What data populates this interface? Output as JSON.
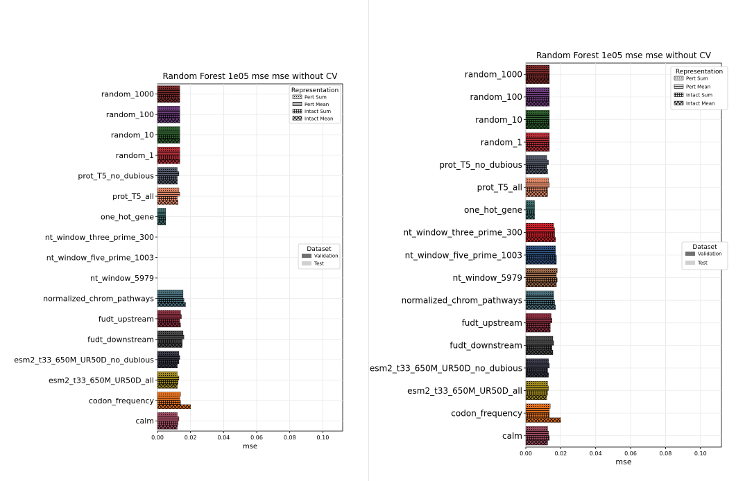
{
  "legend_representation": {
    "title": "Representation",
    "items": [
      "Pert Sum",
      "Pert Mean",
      "Intact Sum",
      "Intact Mean"
    ]
  },
  "legend_dataset": {
    "title": "Dataset",
    "items": [
      "Validation",
      "Test"
    ]
  },
  "colors": {
    "random_1000": "#7a2a2a",
    "random_100": "#6b3d7a",
    "random_10": "#2f5e2f",
    "random_1": "#b5303a",
    "prot_T5_no_dubious": "#555b6b",
    "prot_T5_all": "#e08a6a",
    "one_hot_gene": "#3e6e6e",
    "nt_window_three_prime_300": "#c8202a",
    "nt_window_five_prime_1003": "#2e4e7a",
    "nt_window_5979": "#9a6a4a",
    "normalized_chrom_pathways": "#4a6e7a",
    "fudt_upstream": "#8a3040",
    "fudt_downstream": "#4a4a4a",
    "esm2_t33_650M_UR50D_no_dubious": "#3a3a4a",
    "esm2_t33_650M_UR50D_all": "#a08a20",
    "codon_frequency": "#e07020",
    "calm": "#9a4a5e",
    "validation": "#707070",
    "test": "#d0d0d0"
  },
  "chart_data": [
    {
      "type": "bar",
      "orientation": "horizontal",
      "title": "Random Forest 1e05 mse mse without CV",
      "xlabel": "mse",
      "ylabel": "",
      "xlim": [
        0,
        0.112
      ],
      "xticks": [
        "0.00",
        "0.02",
        "0.04",
        "0.06",
        "0.08",
        "0.10"
      ],
      "grid": true,
      "categories": [
        "random_1000",
        "random_100",
        "random_10",
        "random_1",
        "prot_T5_no_dubious",
        "prot_T5_all",
        "one_hot_gene",
        "nt_window_three_prime_300",
        "nt_window_five_prime_1003",
        "nt_window_5979",
        "normalized_chrom_pathways",
        "fudt_upstream",
        "fudt_downstream",
        "esm2_t33_650M_UR50D_no_dubious",
        "esm2_t33_650M_UR50D_all",
        "codon_frequency",
        "calm"
      ],
      "series": [
        {
          "name": "Pert Sum",
          "values": [
            0.0135,
            0.0135,
            0.0135,
            0.0135,
            0.012,
            0.013,
            0.005,
            null,
            null,
            null,
            0.0155,
            0.014,
            0.0155,
            0.013,
            0.012,
            0.014,
            0.012
          ]
        },
        {
          "name": "Pert Mean",
          "values": [
            0.0135,
            0.0135,
            0.0135,
            0.0135,
            0.013,
            0.0135,
            0.005,
            null,
            null,
            null,
            0.0155,
            0.0145,
            0.016,
            0.0135,
            0.013,
            0.0135,
            0.013
          ]
        },
        {
          "name": "Intact Sum",
          "values": [
            0.0135,
            0.0135,
            0.0135,
            0.0135,
            0.012,
            0.012,
            0.005,
            null,
            null,
            null,
            0.016,
            0.0135,
            0.015,
            0.013,
            0.0125,
            0.014,
            0.0125
          ]
        },
        {
          "name": "Intact Mean",
          "values": [
            0.0135,
            0.0135,
            0.0135,
            0.0135,
            0.012,
            0.0125,
            0.005,
            null,
            null,
            null,
            0.017,
            0.014,
            0.015,
            0.012,
            0.012,
            0.02,
            0.012
          ]
        }
      ],
      "legend_placement": [
        "top-right",
        "center-right"
      ]
    },
    {
      "type": "bar",
      "orientation": "horizontal",
      "title": "Random Forest 1e05 mse mse without CV",
      "xlabel": "mse",
      "ylabel": "",
      "xlim": [
        0,
        0.112
      ],
      "xticks": [
        "0.00",
        "0.02",
        "0.04",
        "0.06",
        "0.08",
        "0.10"
      ],
      "grid": true,
      "categories": [
        "random_1000",
        "random_100",
        "random_10",
        "random_1",
        "prot_T5_no_dubious",
        "prot_T5_all",
        "one_hot_gene",
        "nt_window_three_prime_300",
        "nt_window_five_prime_1003",
        "nt_window_5979",
        "normalized_chrom_pathways",
        "fudt_upstream",
        "fudt_downstream",
        "esm2_t33_650M_UR50D_no_dubious",
        "esm2_t33_650M_UR50D_all",
        "codon_frequency",
        "calm"
      ],
      "series": [
        {
          "name": "Pert Sum",
          "values": [
            0.0135,
            0.0135,
            0.0135,
            0.0135,
            0.012,
            0.013,
            0.005,
            0.016,
            0.017,
            0.018,
            0.016,
            0.0145,
            0.0155,
            0.013,
            0.0125,
            0.014,
            0.0125
          ]
        },
        {
          "name": "Pert Mean",
          "values": [
            0.0135,
            0.0135,
            0.0135,
            0.0135,
            0.013,
            0.0135,
            0.005,
            0.0165,
            0.017,
            0.0175,
            0.016,
            0.015,
            0.016,
            0.0135,
            0.013,
            0.0135,
            0.013
          ]
        },
        {
          "name": "Intact Sum",
          "values": [
            0.0135,
            0.0135,
            0.0135,
            0.0135,
            0.012,
            0.0125,
            0.005,
            0.0165,
            0.0175,
            0.018,
            0.0165,
            0.014,
            0.015,
            0.0125,
            0.0125,
            0.0135,
            0.0135
          ]
        },
        {
          "name": "Intact Mean",
          "values": [
            0.0135,
            0.0135,
            0.0135,
            0.0135,
            0.0125,
            0.0125,
            0.005,
            0.017,
            0.0175,
            0.0175,
            0.017,
            0.014,
            0.0155,
            0.013,
            0.012,
            0.02,
            0.0125
          ]
        }
      ],
      "legend_placement": [
        "top-right",
        "center-right"
      ]
    }
  ]
}
